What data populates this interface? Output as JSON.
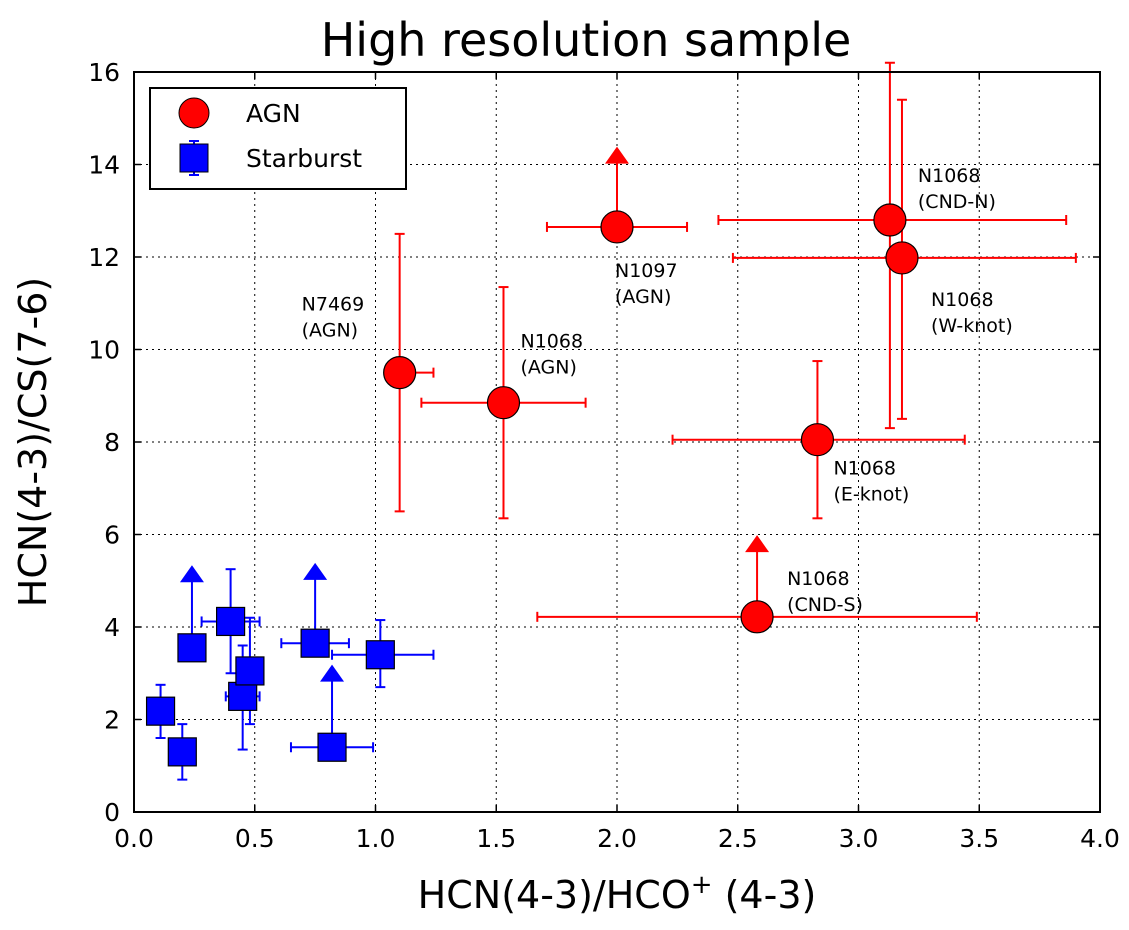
{
  "chart_data": {
    "type": "scatter",
    "title": "High resolution sample",
    "xlabel": {
      "main": "HCN(4-3)/HCO",
      "sup": "+",
      "tail": " (4-3)"
    },
    "ylabel": "HCN(4-3)/CS(7-6)",
    "xlim": [
      0.0,
      4.0
    ],
    "ylim": [
      0,
      16
    ],
    "xticks": [
      "0.0",
      "0.5",
      "1.0",
      "1.5",
      "2.0",
      "2.5",
      "3.0",
      "3.5",
      "4.0"
    ],
    "yticks": [
      "0",
      "2",
      "4",
      "6",
      "8",
      "10",
      "12",
      "14",
      "16"
    ],
    "grid": true,
    "legend_position": "top-left",
    "colors": {
      "AGN": "#ff0000",
      "Starburst": "#0000ff"
    },
    "series": [
      {
        "name": "AGN",
        "marker": "circle",
        "points": [
          {
            "x": 1.1,
            "y": 9.5,
            "xerr": [
              1.05,
              1.24
            ],
            "yerr": [
              6.5,
              12.5
            ],
            "label": [
              "N7469",
              "(AGN)"
            ]
          },
          {
            "x": 1.53,
            "y": 8.85,
            "xerr": [
              1.19,
              1.87
            ],
            "yerr": [
              6.35,
              11.35
            ],
            "label": [
              "N1068",
              "(AGN)"
            ]
          },
          {
            "x": 2.0,
            "y": 12.65,
            "xerr": [
              1.71,
              2.29
            ],
            "yerr": [
              12.65,
              12.65
            ],
            "label": [
              "N1097",
              "(AGN)"
            ],
            "lower_limit_to": 14.3
          },
          {
            "x": 3.13,
            "y": 12.8,
            "xerr": [
              2.42,
              3.86
            ],
            "yerr": [
              8.3,
              16.2
            ],
            "label": [
              "N1068",
              "(CND-N)"
            ]
          },
          {
            "x": 3.18,
            "y": 11.98,
            "xerr": [
              2.48,
              3.9
            ],
            "yerr": [
              8.5,
              15.4
            ],
            "label": [
              "N1068",
              "(W-knot)"
            ]
          },
          {
            "x": 2.83,
            "y": 8.05,
            "xerr": [
              2.23,
              3.44
            ],
            "yerr": [
              6.35,
              9.75
            ],
            "label": [
              "N1068",
              "(E-knot)"
            ]
          },
          {
            "x": 2.58,
            "y": 4.22,
            "xerr": [
              1.67,
              3.49
            ],
            "yerr": [
              4.22,
              4.22
            ],
            "label": [
              "N1068",
              "(CND-S)"
            ],
            "lower_limit_to": 5.9
          }
        ]
      },
      {
        "name": "Starburst",
        "marker": "square",
        "points": [
          {
            "x": 0.11,
            "y": 2.18,
            "xerr": [
              0.08,
              0.14
            ],
            "yerr": [
              1.6,
              2.75
            ]
          },
          {
            "x": 0.2,
            "y": 1.3,
            "xerr": [
              0.17,
              0.23
            ],
            "yerr": [
              0.7,
              1.9
            ]
          },
          {
            "x": 0.24,
            "y": 3.55,
            "xerr": [
              0.22,
              0.26
            ],
            "yerr": [
              3.55,
              3.55
            ],
            "lower_limit_to": 5.25
          },
          {
            "x": 0.4,
            "y": 4.12,
            "xerr": [
              0.28,
              0.52
            ],
            "yerr": [
              3.0,
              5.25
            ]
          },
          {
            "x": 0.45,
            "y": 2.5,
            "xerr": [
              0.38,
              0.52
            ],
            "yerr": [
              1.35,
              3.6
            ]
          },
          {
            "x": 0.48,
            "y": 3.05,
            "xerr": [
              0.44,
              0.53
            ],
            "yerr": [
              1.9,
              4.2
            ]
          },
          {
            "x": 0.75,
            "y": 3.65,
            "xerr": [
              0.61,
              0.89
            ],
            "yerr": [
              3.65,
              3.65
            ],
            "lower_limit_to": 5.3
          },
          {
            "x": 0.82,
            "y": 1.4,
            "xerr": [
              0.65,
              0.99
            ],
            "yerr": [
              1.4,
              1.4
            ],
            "lower_limit_to": 3.1
          },
          {
            "x": 1.02,
            "y": 3.4,
            "xerr": [
              0.82,
              1.24
            ],
            "yerr": [
              2.7,
              4.15
            ]
          }
        ]
      }
    ]
  }
}
